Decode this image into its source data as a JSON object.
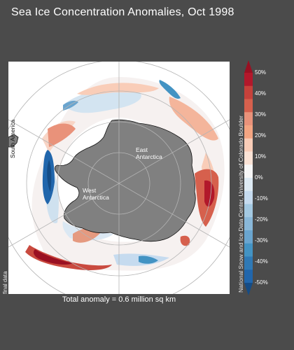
{
  "title": "Sea Ice Concentration Anomalies, Oct 1998",
  "map": {
    "labels": {
      "south_america": "South America",
      "east_antarctica_line1": "East",
      "east_antarctica_line2": "Antarctica",
      "west_antarctica_line1": "West",
      "west_antarctica_line2": "Antarctica"
    },
    "colors": {
      "background": "#ffffff",
      "land": "#808080",
      "coastline": "#111111",
      "graticule": "#b4b4b4"
    }
  },
  "colorbar": {
    "tick_labels": [
      "50%",
      "40%",
      "30%",
      "20%",
      "10%",
      "0%",
      "-10%",
      "-20%",
      "-30%",
      "-40%",
      "-50%"
    ],
    "colors_top_to_bottom": [
      "#9a1022",
      "#b2182b",
      "#c6413b",
      "#d6604d",
      "#e9927a",
      "#f4a582",
      "#f9cdb8",
      "#fbe3d6",
      "#f7f7f7",
      "#deebf4",
      "#c6dbef",
      "#a4c9e2",
      "#8ab8d9",
      "#6aa5cf",
      "#4393c3",
      "#2f79b5",
      "#2166ac",
      "#154c86"
    ]
  },
  "credit": "National Snow and Ice Data Center, University of Colorado Boulder",
  "data_note": "final data",
  "footer": "Total anomaly = 0.6 million sq km"
}
